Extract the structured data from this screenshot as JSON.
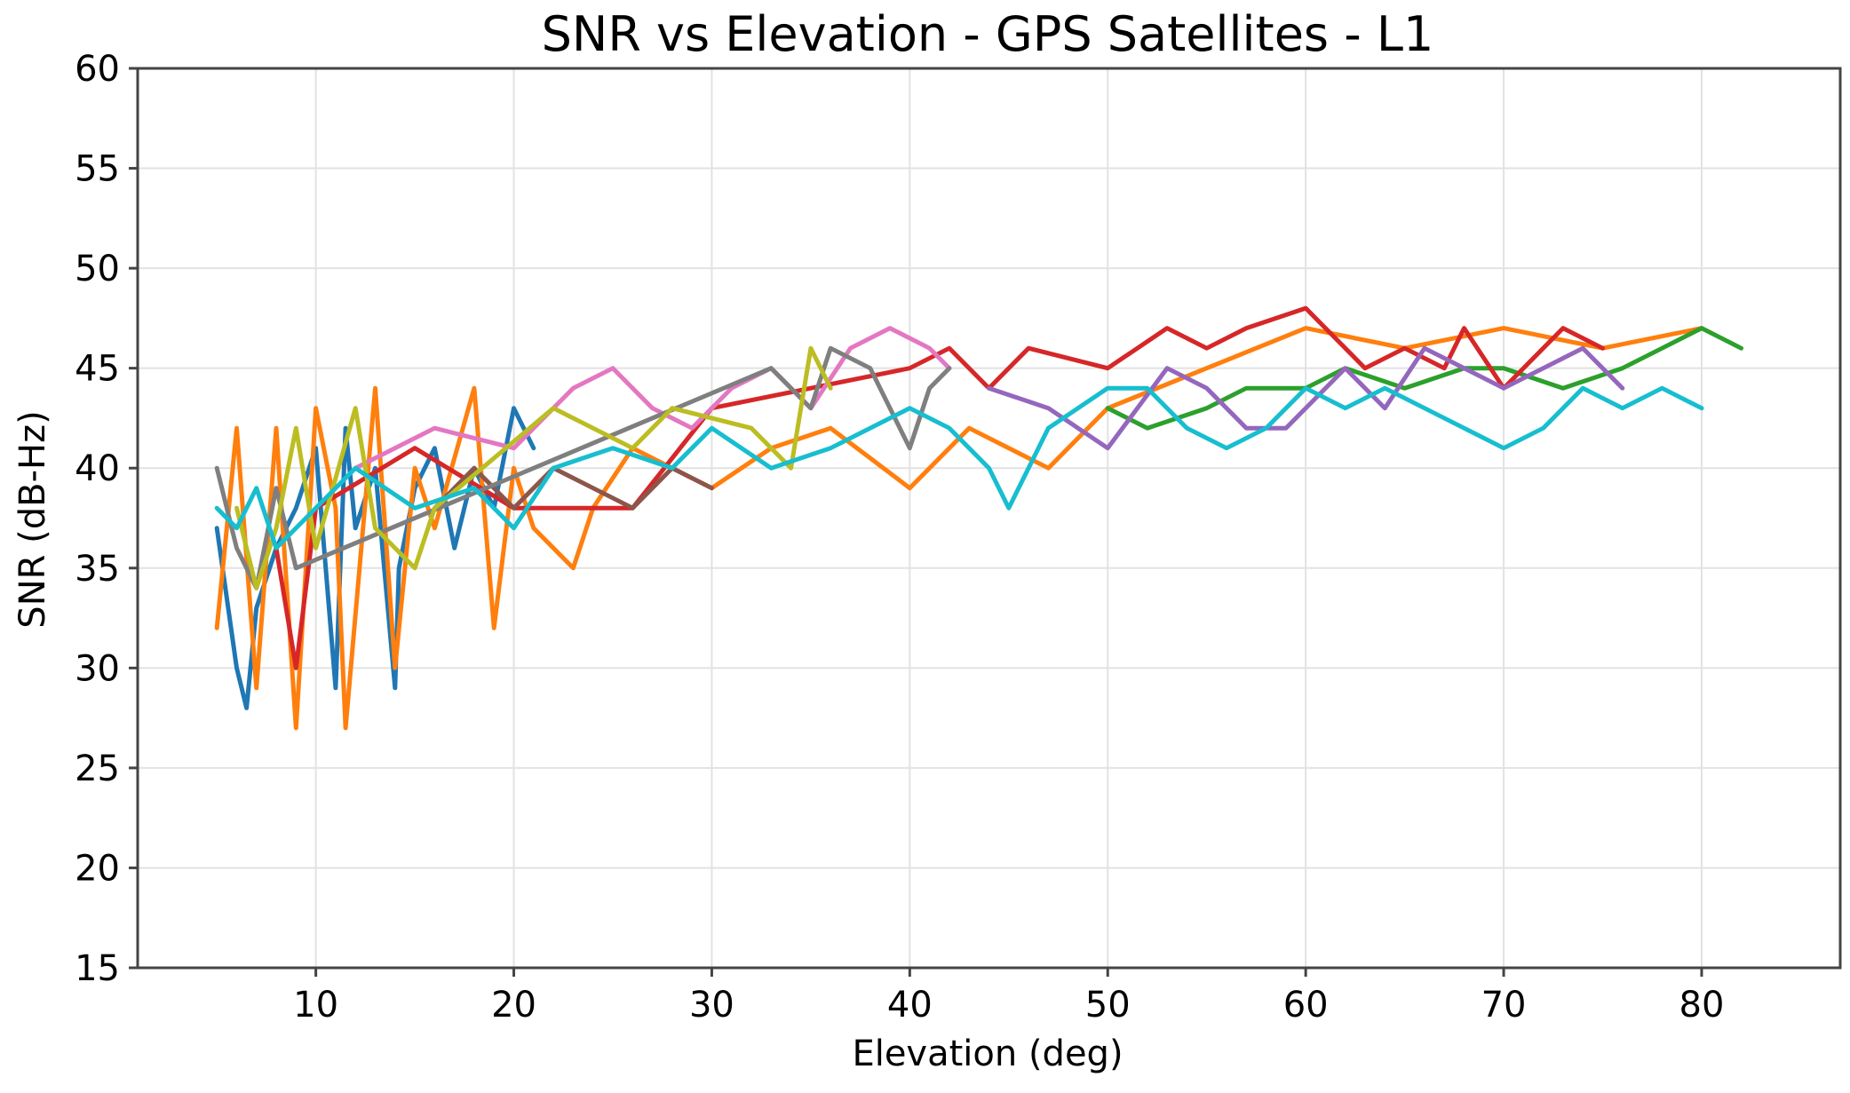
{
  "chart_data": {
    "type": "line",
    "title": "SNR vs Elevation - GPS Satellites - L1",
    "xlabel": "Elevation (deg)",
    "ylabel": "SNR (dB-Hz)",
    "xlim": [
      1,
      87
    ],
    "ylim": [
      15,
      60
    ],
    "xticks": [
      "10",
      "20",
      "30",
      "40",
      "50",
      "60",
      "70",
      "80"
    ],
    "yticks": [
      "15",
      "20",
      "25",
      "30",
      "35",
      "40",
      "45",
      "50",
      "55",
      "60"
    ],
    "grid": true,
    "series": [
      {
        "name": "blue",
        "color": "#1f77b4",
        "x": [
          5,
          6,
          6.5,
          7,
          8,
          9,
          10,
          11,
          11.5,
          12,
          13,
          14,
          14.2,
          15,
          16,
          17,
          18,
          19,
          20,
          21
        ],
        "y": [
          37,
          30,
          28,
          33,
          36,
          38,
          41,
          29,
          42,
          37,
          40,
          29,
          35,
          39,
          41,
          36,
          40,
          38,
          43,
          41
        ]
      },
      {
        "name": "orange",
        "color": "#ff7f0e",
        "x": [
          5,
          6,
          7,
          8,
          9,
          10,
          11,
          11.5,
          13,
          14,
          15,
          16,
          18,
          19,
          20,
          21,
          23,
          24,
          26,
          28,
          30,
          33,
          36,
          40,
          43,
          47,
          50,
          55,
          60,
          65,
          70,
          75,
          80
        ],
        "y": [
          32,
          42,
          29,
          42,
          27,
          43,
          38,
          27,
          44,
          30,
          40,
          37,
          44,
          32,
          40,
          37,
          35,
          38,
          41,
          40,
          39,
          41,
          42,
          39,
          42,
          40,
          43,
          45,
          47,
          46,
          47,
          46,
          47
        ]
      },
      {
        "name": "green",
        "color": "#2ca02c",
        "x": [
          50,
          52,
          55,
          57,
          60,
          62,
          65,
          68,
          70,
          73,
          76,
          78,
          80,
          82
        ],
        "y": [
          43,
          42,
          43,
          44,
          44,
          45,
          44,
          45,
          45,
          44,
          45,
          46,
          47,
          46
        ]
      },
      {
        "name": "red",
        "color": "#d62728",
        "x": [
          8,
          9,
          10,
          15,
          20,
          26,
          30,
          35,
          40,
          42,
          44,
          46,
          50,
          53,
          55,
          57,
          60,
          61,
          63,
          65,
          67,
          68,
          70,
          73,
          75
        ],
        "y": [
          36,
          30,
          38,
          41,
          38,
          38,
          43,
          44,
          45,
          46,
          44,
          46,
          45,
          47,
          46,
          47,
          48,
          47,
          45,
          46,
          45,
          47,
          44,
          47,
          46
        ]
      },
      {
        "name": "purple",
        "color": "#9467bd",
        "x": [
          44,
          47,
          50,
          53,
          55,
          57,
          59,
          62,
          64,
          66,
          70,
          74,
          76
        ],
        "y": [
          44,
          43,
          41,
          45,
          44,
          42,
          42,
          45,
          43,
          46,
          44,
          46,
          44
        ]
      },
      {
        "name": "brown",
        "color": "#8c564b",
        "x": [
          16,
          18,
          20,
          22,
          24,
          26,
          28,
          30
        ],
        "y": [
          38,
          40,
          38,
          40,
          39,
          38,
          40,
          39
        ]
      },
      {
        "name": "pink",
        "color": "#e377c2",
        "x": [
          12,
          16,
          20,
          23,
          25,
          27,
          29,
          31,
          33,
          35,
          37,
          39,
          41,
          42
        ],
        "y": [
          40,
          42,
          41,
          44,
          45,
          43,
          42,
          44,
          45,
          43,
          46,
          47,
          46,
          45
        ]
      },
      {
        "name": "gray",
        "color": "#7f7f7f",
        "x": [
          5,
          6,
          7,
          8,
          9,
          33,
          35,
          36,
          38,
          40,
          41,
          42
        ],
        "y": [
          40,
          36,
          34,
          39,
          35,
          45,
          43,
          46,
          45,
          41,
          44,
          45
        ]
      },
      {
        "name": "olive",
        "color": "#bcbd22",
        "x": [
          6,
          7,
          8,
          9,
          10,
          12,
          13,
          15,
          16,
          22,
          24,
          26,
          28,
          32,
          34,
          35,
          36
        ],
        "y": [
          38,
          34,
          37,
          42,
          36,
          43,
          37,
          35,
          38,
          43,
          42,
          41,
          43,
          42,
          40,
          46,
          44
        ]
      },
      {
        "name": "cyan",
        "color": "#17becf",
        "x": [
          5,
          6,
          7,
          8,
          10,
          12,
          15,
          18,
          20,
          22,
          25,
          28,
          30,
          33,
          36,
          40,
          42,
          44,
          45,
          47,
          50,
          52,
          54,
          56,
          58,
          60,
          62,
          64,
          66,
          68,
          70,
          72,
          74,
          76,
          78,
          80
        ],
        "y": [
          38,
          37,
          39,
          36,
          38,
          40,
          38,
          39,
          37,
          40,
          41,
          40,
          42,
          40,
          41,
          43,
          42,
          40,
          38,
          42,
          44,
          44,
          42,
          41,
          42,
          44,
          43,
          44,
          43,
          42,
          41,
          42,
          44,
          43,
          44,
          43
        ]
      }
    ]
  }
}
